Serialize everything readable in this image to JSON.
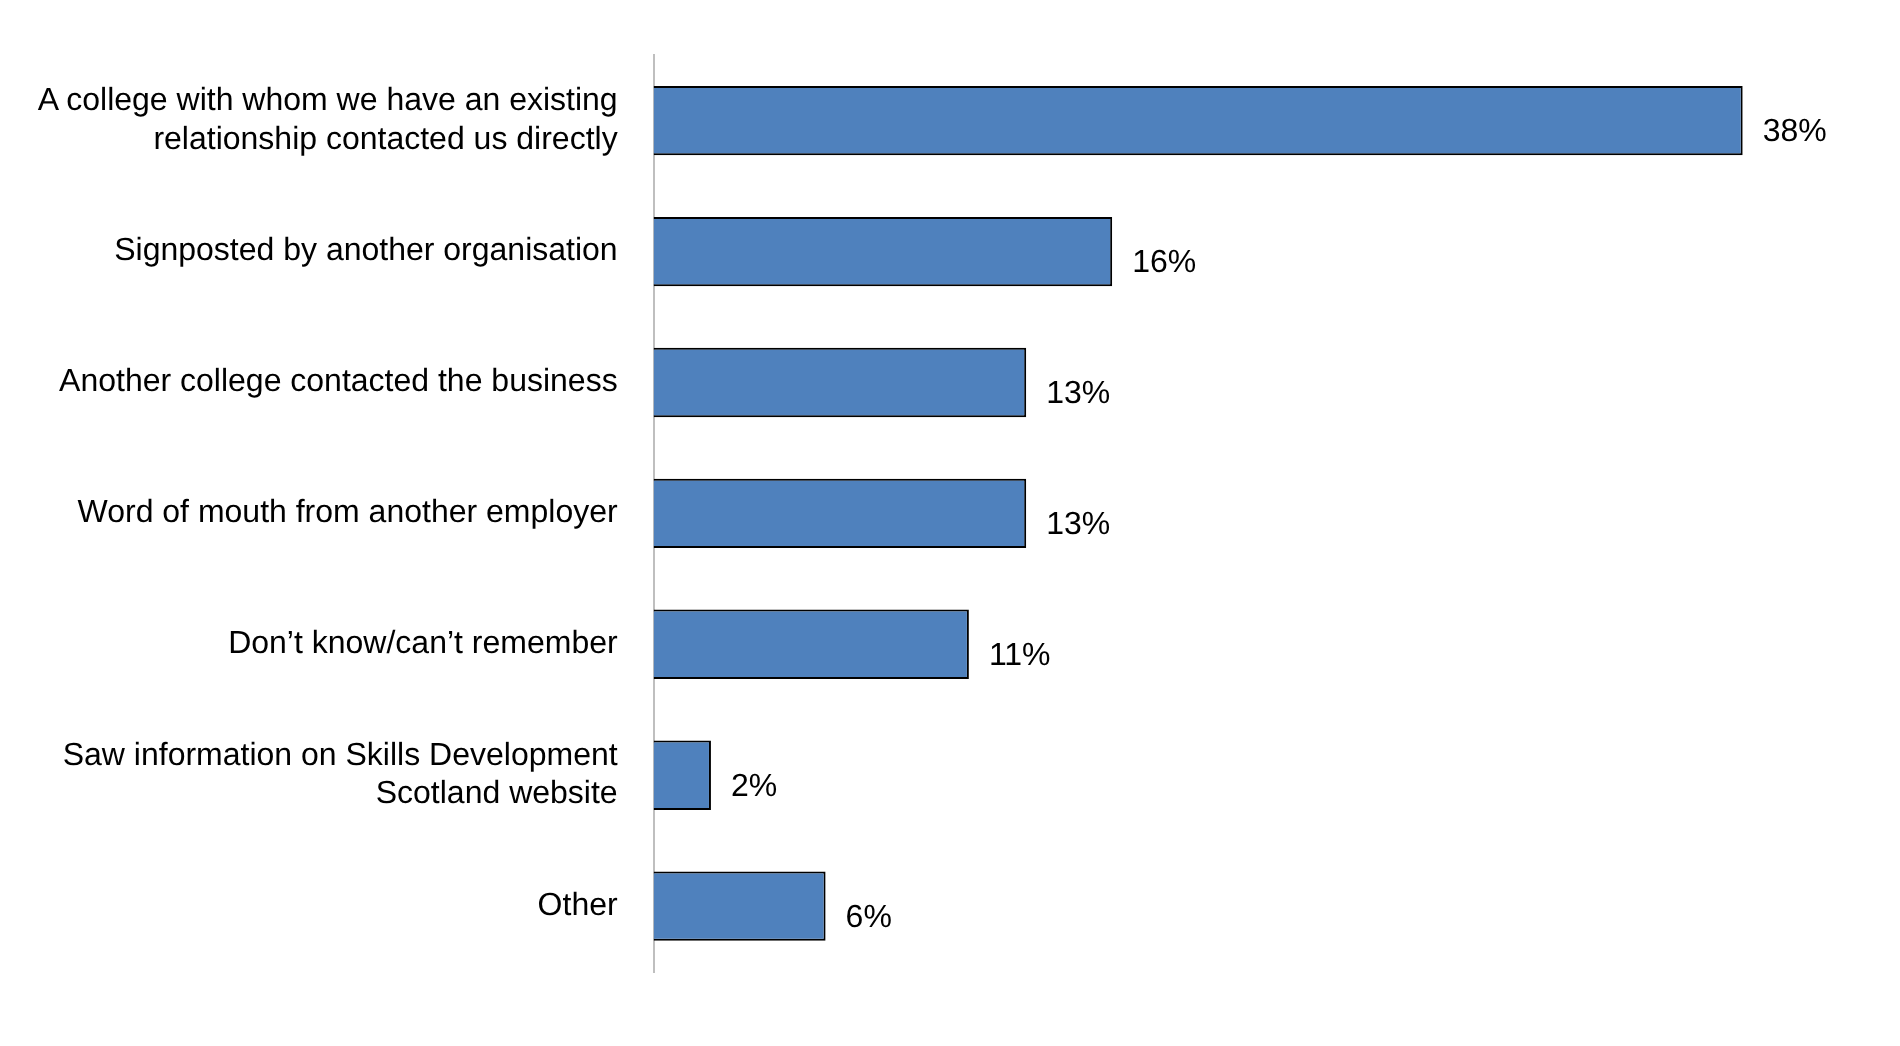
{
  "chart_data": {
    "type": "bar",
    "orientation": "horizontal",
    "categories": [
      "A college with whom we have an existing relationship contacted us directly",
      "Signposted by another organisation",
      "Another college contacted the business",
      "Word of mouth from another employer",
      "Don’t know/can’t remember",
      "Saw information on Skills Development Scotland website",
      "Other"
    ],
    "values": [
      38,
      16,
      13,
      13,
      11,
      2,
      6
    ],
    "value_labels": [
      "38%",
      "16%",
      "13%",
      "13%",
      "11%",
      "2%",
      "6%"
    ],
    "color": "#4f81bd",
    "tick_labels": "y",
    "grid": false,
    "legend": false
  }
}
